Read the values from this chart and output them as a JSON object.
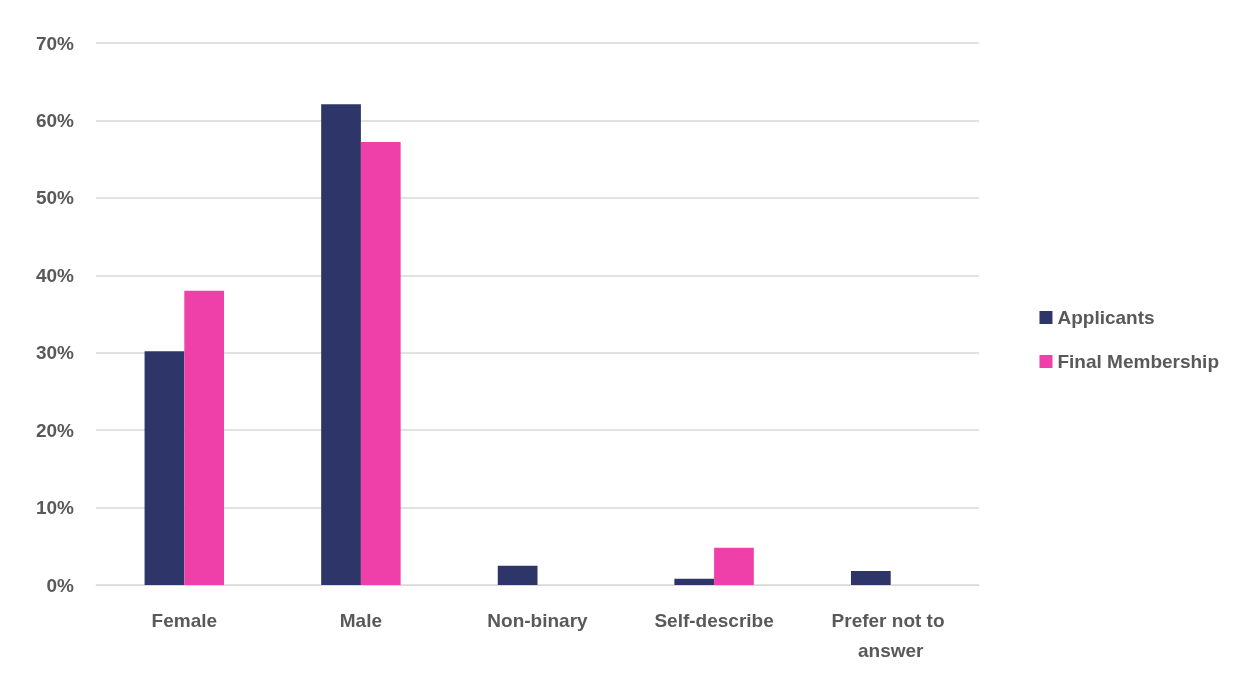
{
  "chart_data": {
    "type": "bar",
    "categories": [
      "Female",
      "Male",
      "Non-binary",
      "Self-describe",
      "Prefer not to answer"
    ],
    "series": [
      {
        "name": "Applicants",
        "color": "#2e3669",
        "values": [
          30.2,
          62.1,
          2.5,
          0.8,
          1.8
        ]
      },
      {
        "name": "Final Membership",
        "color": "#ee40a8",
        "values": [
          38.0,
          57.2,
          0,
          4.8,
          0
        ]
      }
    ],
    "ylim": [
      0,
      70
    ],
    "yticks": [
      {
        "value": 0,
        "label": "0%"
      },
      {
        "value": 10,
        "label": "10%"
      },
      {
        "value": 20,
        "label": "20%"
      },
      {
        "value": 30,
        "label": "30%"
      },
      {
        "value": 40,
        "label": "40%"
      },
      {
        "value": 50,
        "label": "50%"
      },
      {
        "value": 60,
        "label": "60%"
      },
      {
        "value": 70,
        "label": "70%"
      }
    ],
    "grid": "y",
    "legend": "right"
  }
}
